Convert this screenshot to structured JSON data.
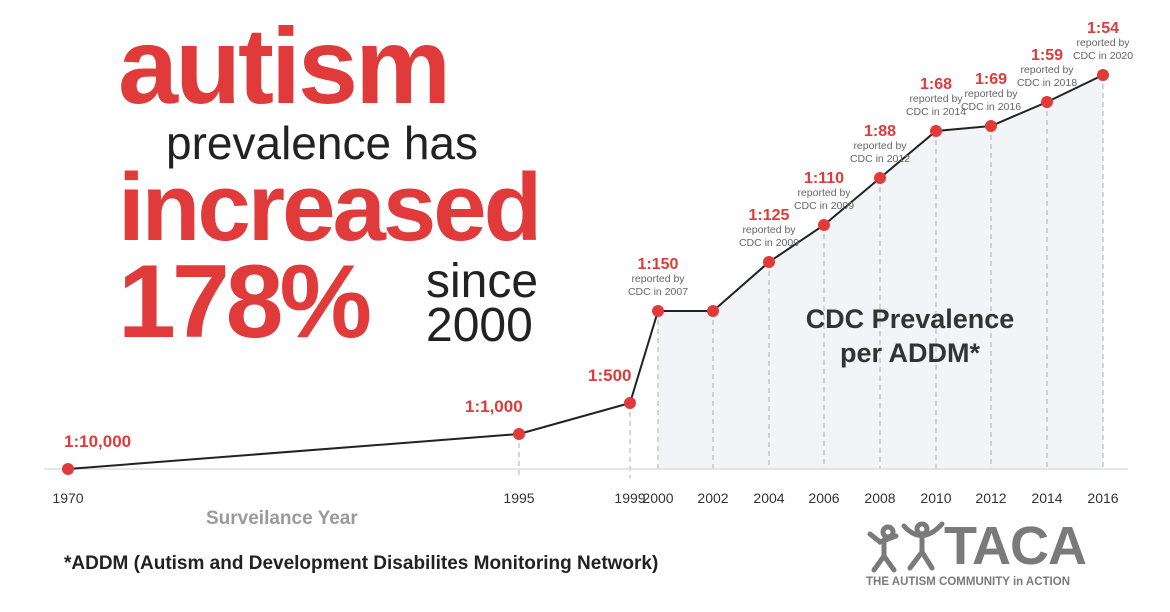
{
  "headline": {
    "line1": "autism",
    "line2": "prevalence has",
    "line3": "increased",
    "line4": "178%",
    "line5a": "since",
    "line5b": "2000"
  },
  "chart_data": {
    "type": "line",
    "title": "CDC Prevalence per ADDM*",
    "title_line1": "CDC Prevalence",
    "title_line2": "per ADDM*",
    "xlabel": "Surveilance Year",
    "ylabel": "",
    "x": [
      "1970",
      "1995",
      "1999",
      "2000",
      "2002",
      "2004",
      "2006",
      "2008",
      "2010",
      "2012",
      "2014",
      "2016"
    ],
    "points": [
      {
        "year": "1970",
        "label": "1:10,000",
        "note": ""
      },
      {
        "year": "1995",
        "label": "1:1,000",
        "note": ""
      },
      {
        "year": "1999",
        "label": "1:500",
        "note": ""
      },
      {
        "year": "2000",
        "label": "1:150",
        "note": "reported by CDC in 2007"
      },
      {
        "year": "2002",
        "label": "",
        "note": ""
      },
      {
        "year": "2004",
        "label": "1:125",
        "note": "reported by CDC in 2009"
      },
      {
        "year": "2006",
        "label": "1:110",
        "note": "reported by CDC in 2009"
      },
      {
        "year": "2008",
        "label": "1:88",
        "note": "reported by CDC in 2012"
      },
      {
        "year": "2010",
        "label": "1:68",
        "note": "reported by CDC in 2014"
      },
      {
        "year": "2012",
        "label": "1:69",
        "note": "reported by CDC in 2016"
      },
      {
        "year": "2014",
        "label": "1:59",
        "note": "reported by CDC in 2018"
      },
      {
        "year": "2016",
        "label": "1:54",
        "note": "reported by CDC in 2020"
      }
    ],
    "grid": false,
    "colors": {
      "marker": "#e03a3a",
      "line": "#222222",
      "area": "#f3f4f7",
      "dashes": "#bbbbbb"
    }
  },
  "footnote": "*ADDM (Autism and Development Disabilites Monitoring Network)",
  "logo": {
    "word": "TACA",
    "tagline": "THE AUTISM COMMUNITY in ACTION"
  }
}
